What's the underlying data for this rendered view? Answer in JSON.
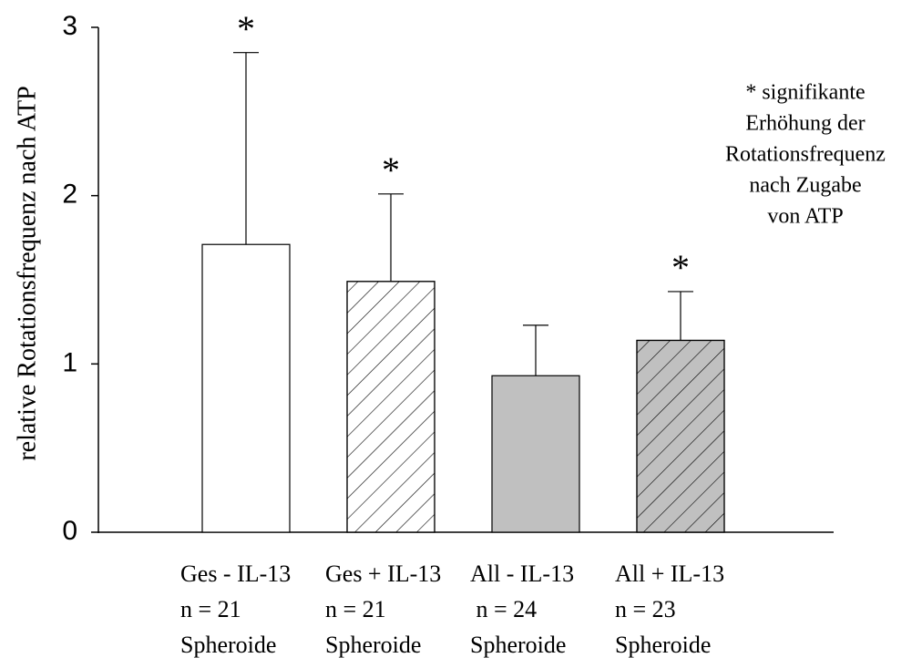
{
  "chart_data": {
    "type": "bar",
    "ylabel": "relative Rotationsfrequenz nach ATP",
    "categories": [
      [
        "Ges - IL-13",
        "n = 21",
        "Spheroide"
      ],
      [
        "Ges + IL-13",
        "n = 21",
        "Spheroide"
      ],
      [
        "All - IL-13",
        " n = 24",
        "Spheroide"
      ],
      [
        "All + IL-13",
        "n = 23",
        "Spheroide"
      ]
    ],
    "values": [
      1.71,
      1.49,
      0.93,
      1.14
    ],
    "errors": [
      1.14,
      0.52,
      0.3,
      0.29
    ],
    "colors": [
      "#ffffff",
      "#ffffff",
      "#c0c0c0",
      "#c0c0c0"
    ],
    "hatched": [
      false,
      true,
      false,
      true
    ],
    "markers": [
      "*",
      "*",
      null,
      "*"
    ],
    "annotation": [
      "* signifikante",
      "Erhöhung der",
      "Rotationsfrequenz",
      "nach Zugabe",
      "von ATP"
    ],
    "ylim": [
      0,
      3
    ],
    "yticks": [
      0,
      1,
      2,
      3
    ]
  }
}
